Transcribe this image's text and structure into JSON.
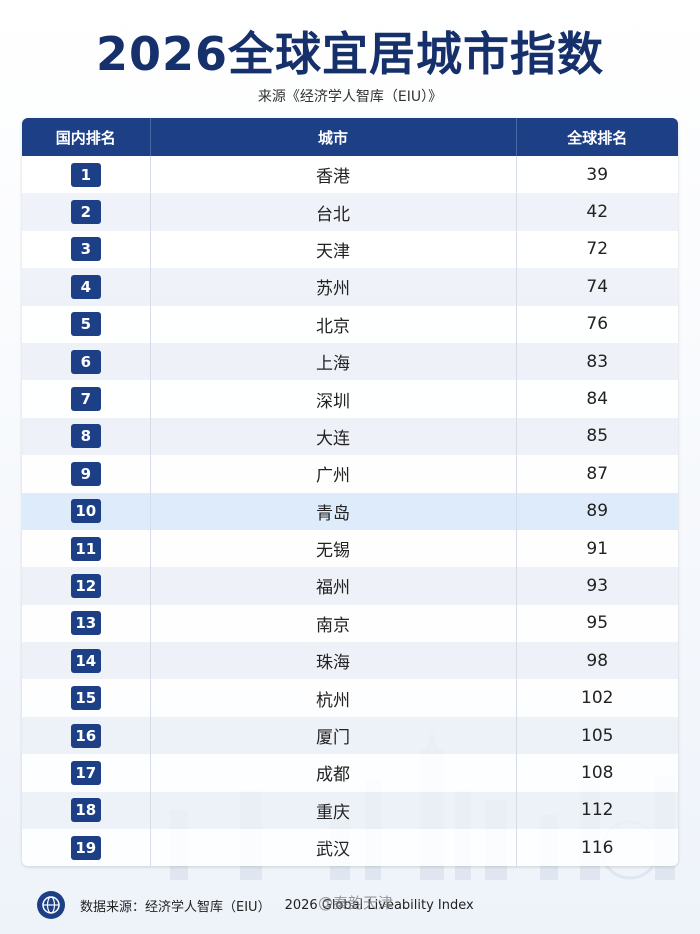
{
  "header": {
    "title": "2026全球宜居城市指数",
    "subtitle": "来源《经济学人智库（EIU）》"
  },
  "table": {
    "columns": [
      "国内排名",
      "城市",
      "全球排名"
    ],
    "rows": [
      [
        1,
        "香港",
        39
      ],
      [
        2,
        "台北",
        42
      ],
      [
        3,
        "天津",
        72
      ],
      [
        4,
        "苏州",
        74
      ],
      [
        5,
        "北京",
        76
      ],
      [
        6,
        "上海",
        83
      ],
      [
        7,
        "深圳",
        84
      ],
      [
        8,
        "大连",
        85
      ],
      [
        9,
        "广州",
        87
      ],
      [
        10,
        "青岛",
        89
      ],
      [
        11,
        "无锡",
        91
      ],
      [
        12,
        "福州",
        93
      ],
      [
        13,
        "南京",
        95
      ],
      [
        14,
        "珠海",
        98
      ],
      [
        15,
        "杭州",
        102
      ],
      [
        16,
        "厦门",
        105
      ],
      [
        17,
        "成都",
        108
      ],
      [
        18,
        "重庆",
        112
      ],
      [
        19,
        "武汉",
        116
      ]
    ]
  },
  "footer": {
    "source": "数据来源：经济学人智库（EIU）",
    "index": "2026 Global Liveability Index"
  },
  "watermark": "@秦韵天津"
}
